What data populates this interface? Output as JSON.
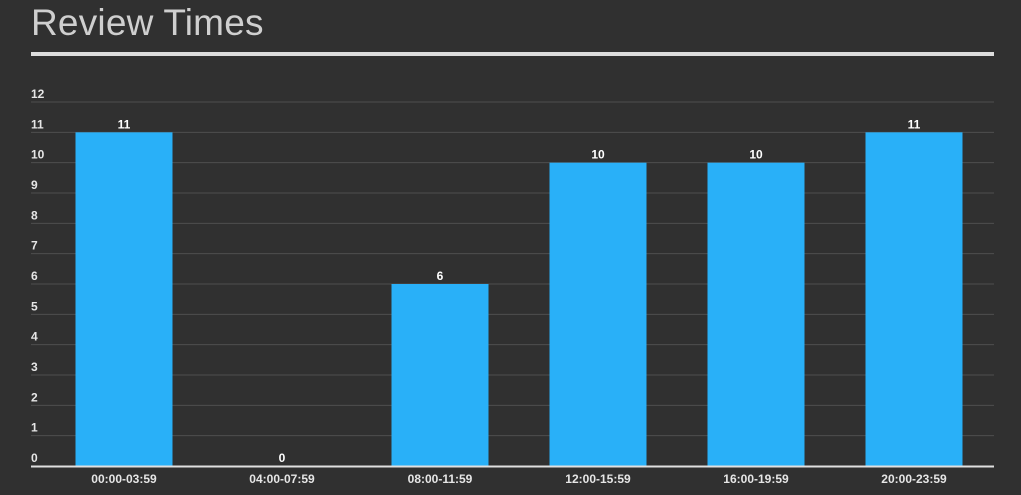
{
  "title": "Review Times",
  "colors": {
    "background": "#303030",
    "bar": "#29b0f8",
    "grid": "#4e4e4e",
    "axis": "#e0e0e0",
    "title_rule": "#dddddd"
  },
  "chart_data": {
    "type": "bar",
    "title": "Review Times",
    "xlabel": "",
    "ylabel": "",
    "categories": [
      "00:00-03:59",
      "04:00-07:59",
      "08:00-11:59",
      "12:00-15:59",
      "16:00-19:59",
      "20:00-23:59"
    ],
    "values": [
      11,
      0,
      6,
      10,
      10,
      11
    ],
    "ylim": [
      0,
      12
    ],
    "yticks": [
      0,
      1,
      2,
      3,
      4,
      5,
      6,
      7,
      8,
      9,
      10,
      11,
      12
    ],
    "grid": true,
    "data_labels": true,
    "legend": "none"
  }
}
